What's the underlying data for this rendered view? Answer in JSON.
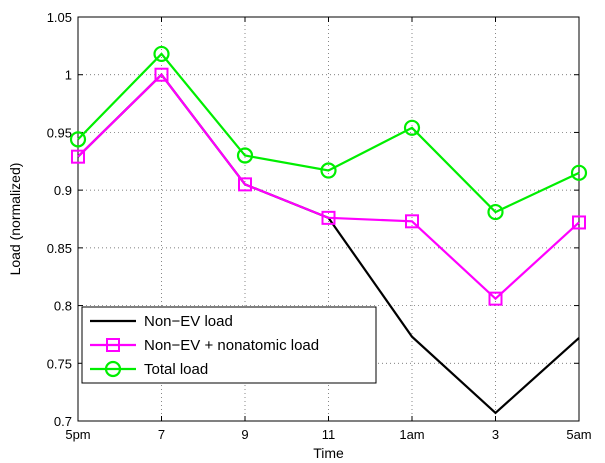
{
  "chart_data": {
    "type": "line",
    "title": "",
    "xlabel": "Time",
    "ylabel": "Load (normalized)",
    "categories": [
      "5pm",
      "7",
      "9",
      "11",
      "1am",
      "3",
      "5am"
    ],
    "ylim": [
      0.7,
      1.05
    ],
    "yticks": [
      "0.7",
      "0.75",
      "0.8",
      "0.85",
      "0.9",
      "0.95",
      "1",
      "1.05"
    ],
    "grid": true,
    "legend_position": "bottom-left",
    "series": [
      {
        "name": "Non−EV load",
        "color": "#000000",
        "marker": "none",
        "values": [
          0.929,
          1.0,
          0.905,
          0.876,
          0.773,
          0.707,
          0.772
        ]
      },
      {
        "name": "Non−EV + nonatomic load",
        "color": "#ff00ff",
        "marker": "square",
        "values": [
          0.929,
          1.0,
          0.905,
          0.876,
          0.873,
          0.806,
          0.872
        ]
      },
      {
        "name": "Total load",
        "color": "#00ee00",
        "marker": "circle",
        "values": [
          0.944,
          1.018,
          0.93,
          0.917,
          0.954,
          0.881,
          0.915
        ]
      }
    ]
  }
}
